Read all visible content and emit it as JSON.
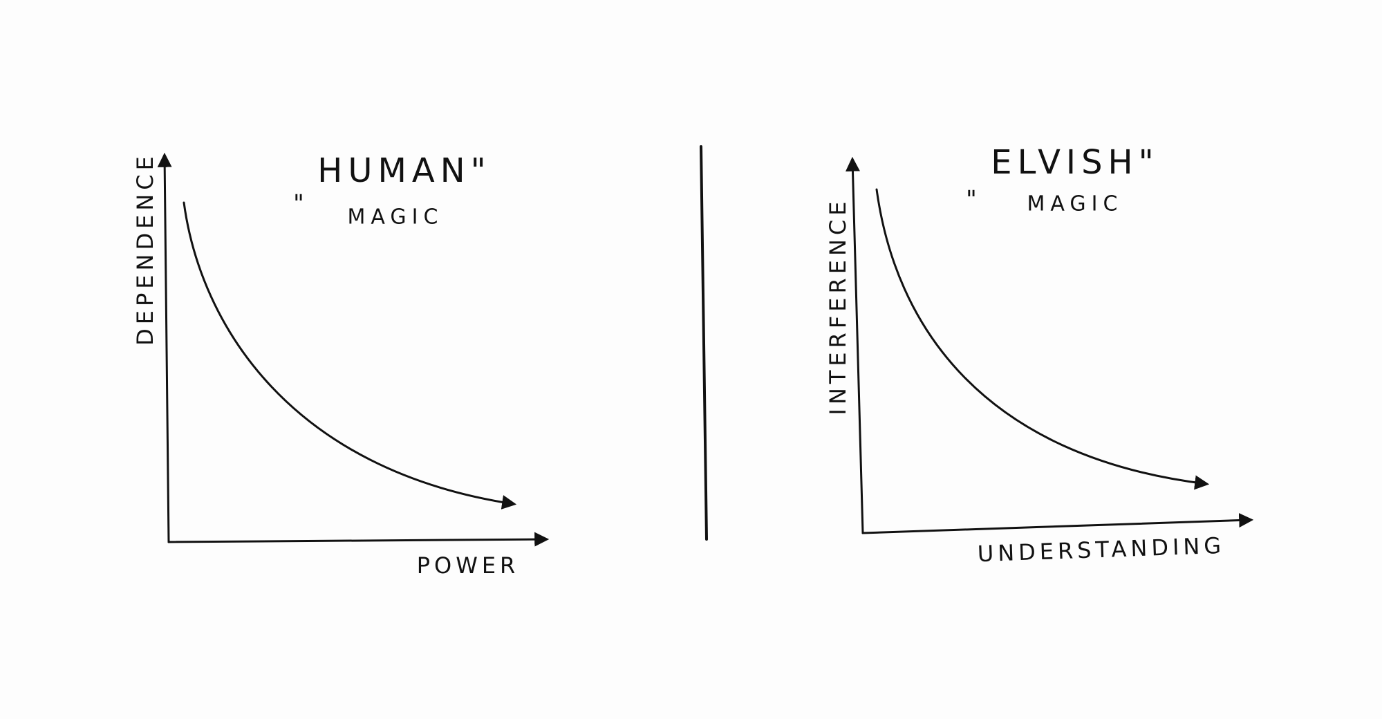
{
  "panels": [
    {
      "quote_open": "\"",
      "title": "HUMAN\"",
      "subtitle": "MAGIC",
      "y_label": "DEPENDENCE",
      "x_label": "POWER"
    },
    {
      "quote_open": "\"",
      "title": "ELVISH\"",
      "subtitle": "MAGIC",
      "y_label": "INTERFERENCE",
      "x_label": "UNDERSTANDING"
    }
  ]
}
